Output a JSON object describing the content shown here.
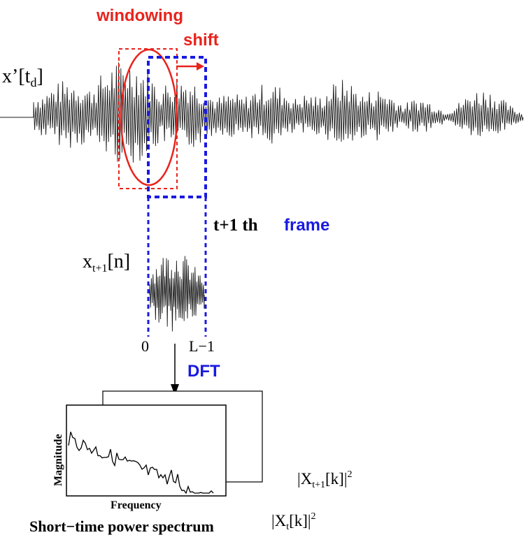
{
  "labels": {
    "windowing": "windowing",
    "shift": "shift",
    "signal": "x’[t",
    "signal_sub": "d",
    "signal_close": "]",
    "frame_number": "t+1 th",
    "frame_word": "frame",
    "segment": "x",
    "segment_sub": "t+1",
    "segment_close": "[n]",
    "axis_start": "0",
    "axis_end": "L−1",
    "dft": "DFT",
    "magnitude": "Magnitude",
    "frequency": "Frequency",
    "spectrum_title": "Short−time power spectrum",
    "spec_next_open": "|X",
    "spec_next_sub": "t+1",
    "spec_next_close": "[k]|",
    "spec_next_exp": "2",
    "spec_cur_open": "|X",
    "spec_cur_sub": "t",
    "spec_cur_close": "[k]|",
    "spec_cur_exp": "2"
  },
  "colors": {
    "waveform": "#1a1a1a",
    "windowing": "#e8231c",
    "frame": "#1a1ae0",
    "text": "#000000"
  }
}
